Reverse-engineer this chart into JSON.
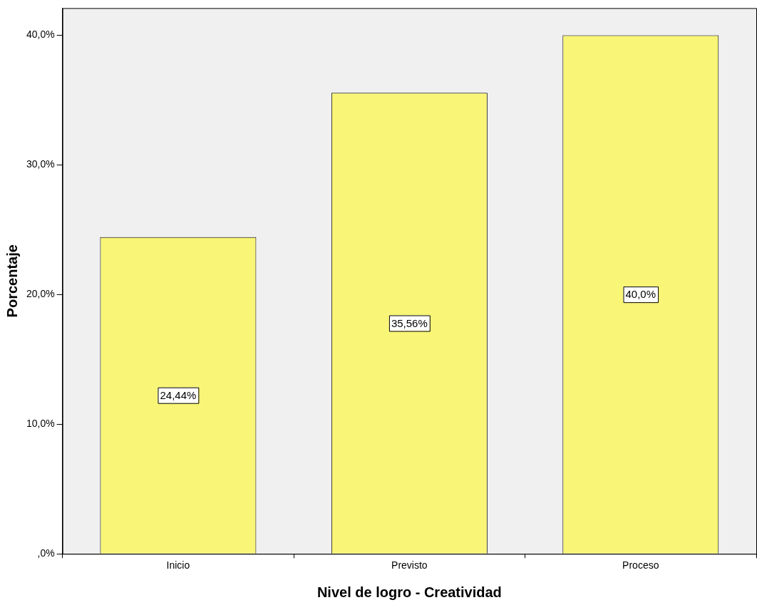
{
  "chart_data": {
    "type": "bar",
    "xlabel": "Nivel de logro - Creatividad",
    "ylabel": "Porcentaje",
    "categories": [
      "Inicio",
      "Previsto",
      "Proceso"
    ],
    "values": [
      24.44,
      35.56,
      40.0
    ],
    "value_labels": [
      "24,44%",
      "35,56%",
      "40,0%"
    ],
    "color": "#f8f577",
    "ylim": [
      0,
      42.1
    ],
    "yticks": [
      {
        "value": 0,
        "label": ",0%"
      },
      {
        "value": 10,
        "label": "10,0%"
      },
      {
        "value": 20,
        "label": "20,0%"
      },
      {
        "value": 30,
        "label": "30,0%"
      },
      {
        "value": 40,
        "label": "40,0%"
      }
    ],
    "grid": false
  }
}
